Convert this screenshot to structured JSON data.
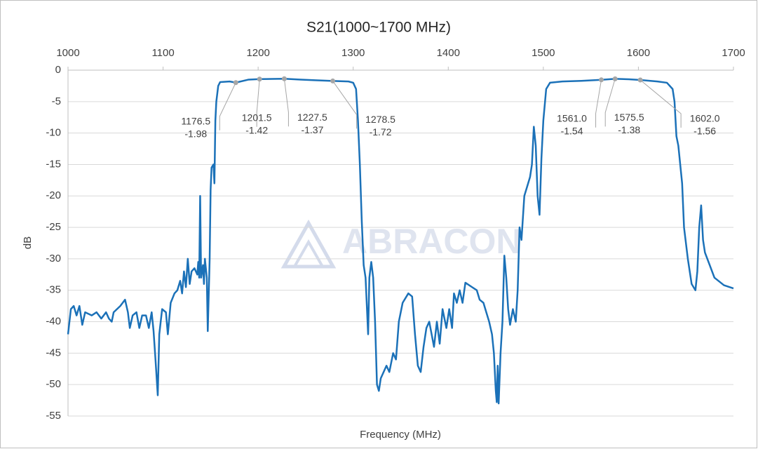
{
  "chart_data": {
    "type": "line",
    "title": "S21(1000~1700 MHz)",
    "x_label": "Frequency (MHz)",
    "y_label": "dB",
    "watermark": "ABRACON",
    "xlim": [
      1000,
      1700
    ],
    "xticks": [
      1000,
      1100,
      1200,
      1300,
      1400,
      1500,
      1600,
      1700
    ],
    "ylim": [
      -55,
      0
    ],
    "yticks": [
      0,
      -5,
      -10,
      -15,
      -20,
      -25,
      -30,
      -35,
      -40,
      -45,
      -50,
      -55
    ],
    "grid": true,
    "x": [
      1000,
      1003,
      1006,
      1009,
      1012,
      1015,
      1018,
      1025,
      1030,
      1035,
      1040,
      1043,
      1046,
      1048,
      1055,
      1060,
      1063,
      1065,
      1068,
      1072,
      1075,
      1078,
      1082,
      1085,
      1088,
      1090,
      1092,
      1094.4,
      1096,
      1099,
      1103,
      1105,
      1108,
      1112,
      1115,
      1118,
      1120,
      1122,
      1124,
      1126,
      1128,
      1130,
      1133,
      1136,
      1137,
      1138,
      1139,
      1140,
      1142,
      1143,
      1144,
      1146,
      1147,
      1149,
      1150,
      1151,
      1153,
      1154,
      1155,
      1156,
      1158,
      1160,
      1170,
      1176.5,
      1190,
      1201.5,
      1215,
      1227.5,
      1245,
      1260,
      1278.5,
      1295,
      1300,
      1303,
      1305,
      1307,
      1309,
      1311,
      1313,
      1315.7,
      1317,
      1319,
      1321,
      1323,
      1325,
      1327,
      1329,
      1332,
      1335,
      1338,
      1342,
      1345,
      1348,
      1352,
      1358,
      1362,
      1365,
      1368,
      1371,
      1374,
      1377,
      1380,
      1385,
      1388,
      1391,
      1394,
      1398,
      1401,
      1404,
      1406,
      1409,
      1412,
      1415,
      1418,
      1425,
      1430,
      1433,
      1437,
      1440,
      1443,
      1446,
      1448,
      1450,
      1451,
      1452,
      1453,
      1455,
      1457,
      1459,
      1461,
      1463,
      1465,
      1468,
      1471,
      1473,
      1475,
      1477,
      1480,
      1483,
      1486,
      1488,
      1490,
      1492,
      1494,
      1496,
      1498,
      1500,
      1503,
      1507,
      1520,
      1540,
      1561,
      1575.5,
      1590,
      1602,
      1620,
      1630,
      1636,
      1638,
      1640,
      1642,
      1646,
      1648,
      1652,
      1656,
      1660,
      1662,
      1664,
      1666,
      1668,
      1670,
      1675,
      1680,
      1690,
      1700
    ],
    "series": [
      {
        "color": "#1b71b8",
        "values": [
          -42,
          -38,
          -37.5,
          -39,
          -37.5,
          -40.5,
          -38.5,
          -39,
          -38.5,
          -39.5,
          -38.5,
          -39.5,
          -40,
          -38.5,
          -37.5,
          -36.5,
          -38.5,
          -41,
          -39,
          -38.5,
          -41,
          -39,
          -39,
          -41,
          -38.5,
          -41.5,
          -46,
          -51.7,
          -42,
          -38,
          -38.5,
          -42,
          -37,
          -35.5,
          -35,
          -33.5,
          -35.5,
          -32,
          -34.5,
          -30,
          -34,
          -32,
          -31.5,
          -32.5,
          -30.5,
          -33,
          -20,
          -33,
          -31,
          -34,
          -30,
          -33,
          -41.5,
          -30,
          -19,
          -15.5,
          -15,
          -18,
          -8,
          -5,
          -2.5,
          -1.9,
          -1.8,
          -1.98,
          -1.5,
          -1.42,
          -1.4,
          -1.37,
          -1.5,
          -1.6,
          -1.72,
          -1.8,
          -2,
          -3,
          -8,
          -15,
          -24,
          -31,
          -33,
          -42,
          -33,
          -30.5,
          -33,
          -40,
          -50,
          -51,
          -49,
          -48,
          -47,
          -48,
          -45,
          -46,
          -40,
          -37,
          -35.5,
          -36,
          -42,
          -47,
          -48,
          -44,
          -41,
          -40,
          -44,
          -40,
          -43.5,
          -38,
          -41,
          -38,
          -41,
          -35.5,
          -37,
          -35,
          -37,
          -33.8,
          -34.5,
          -35,
          -36.5,
          -37,
          -38.5,
          -40,
          -42,
          -45,
          -51,
          -52.8,
          -47,
          -53,
          -45,
          -40,
          -29.5,
          -33,
          -38,
          -40.5,
          -38,
          -40,
          -35,
          -25,
          -27,
          -20,
          -18.5,
          -17,
          -15,
          -9,
          -12,
          -20,
          -23,
          -14,
          -8,
          -3,
          -2,
          -1.8,
          -1.7,
          -1.54,
          -1.38,
          -1.45,
          -1.56,
          -1.8,
          -2,
          -3,
          -5,
          -10.5,
          -12,
          -18,
          -25,
          -30,
          -34,
          -35,
          -32,
          -25,
          -21.5,
          -27,
          -29,
          -31,
          -33,
          -34.2,
          -34.7
        ]
      }
    ],
    "markers": [
      {
        "x": 1176.5,
        "y": -1.98,
        "x_label": "1176.5"
      },
      {
        "x": 1201.5,
        "y": -1.42,
        "x_label": "1201.5"
      },
      {
        "x": 1227.5,
        "y": -1.37,
        "x_label": "1227.5"
      },
      {
        "x": 1278.5,
        "y": -1.72,
        "x_label": "1278.5"
      },
      {
        "x": 1561,
        "y": -1.54,
        "x_label": "1561.0"
      },
      {
        "x": 1575.5,
        "y": -1.38,
        "x_label": "1575.5"
      },
      {
        "x": 1602,
        "y": -1.56,
        "x_label": "1602.0"
      }
    ]
  }
}
